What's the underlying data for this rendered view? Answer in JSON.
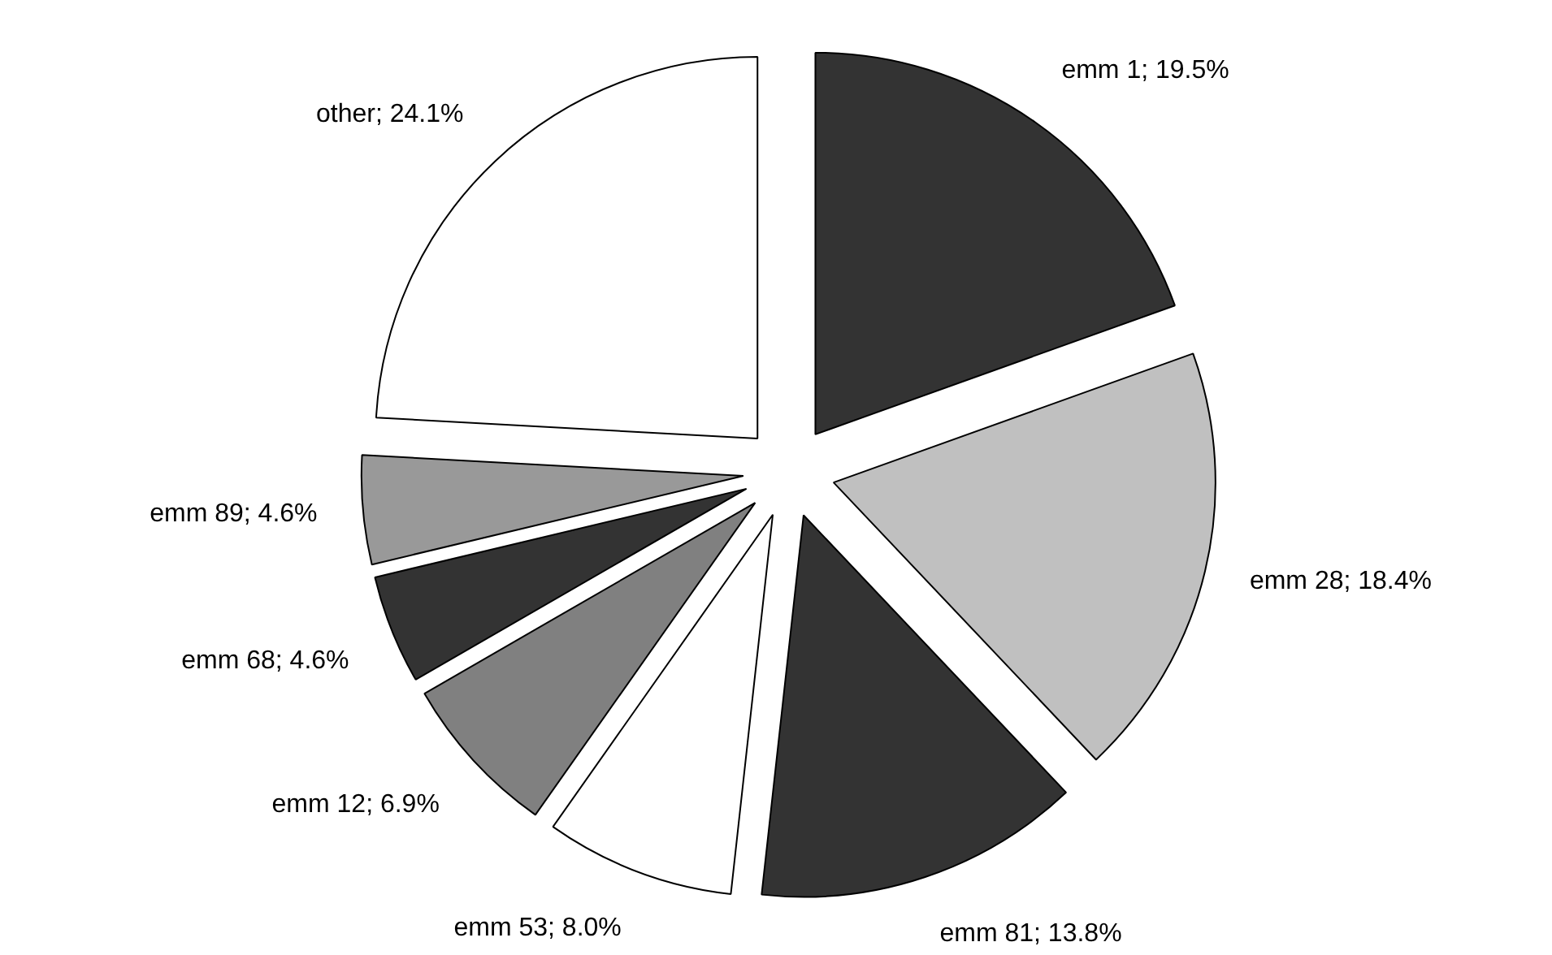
{
  "chart_data": {
    "type": "pie",
    "categories": [
      "emm 1",
      "emm 28",
      "emm 81",
      "emm 53",
      "emm 12",
      "emm 68",
      "emm 89",
      "other"
    ],
    "values": [
      19.5,
      18.4,
      13.8,
      8.0,
      6.9,
      4.6,
      4.6,
      24.1
    ],
    "colors": [
      "#333333",
      "#c0c0c0",
      "#333333",
      "#ffffff",
      "#808080",
      "#333333",
      "#999999",
      "#ffffff"
    ],
    "value_labels": [
      "19.5%",
      "18.4%",
      "13.8%",
      "8.0%",
      "6.9%",
      "4.6%",
      "4.6%",
      "24.1%"
    ]
  }
}
